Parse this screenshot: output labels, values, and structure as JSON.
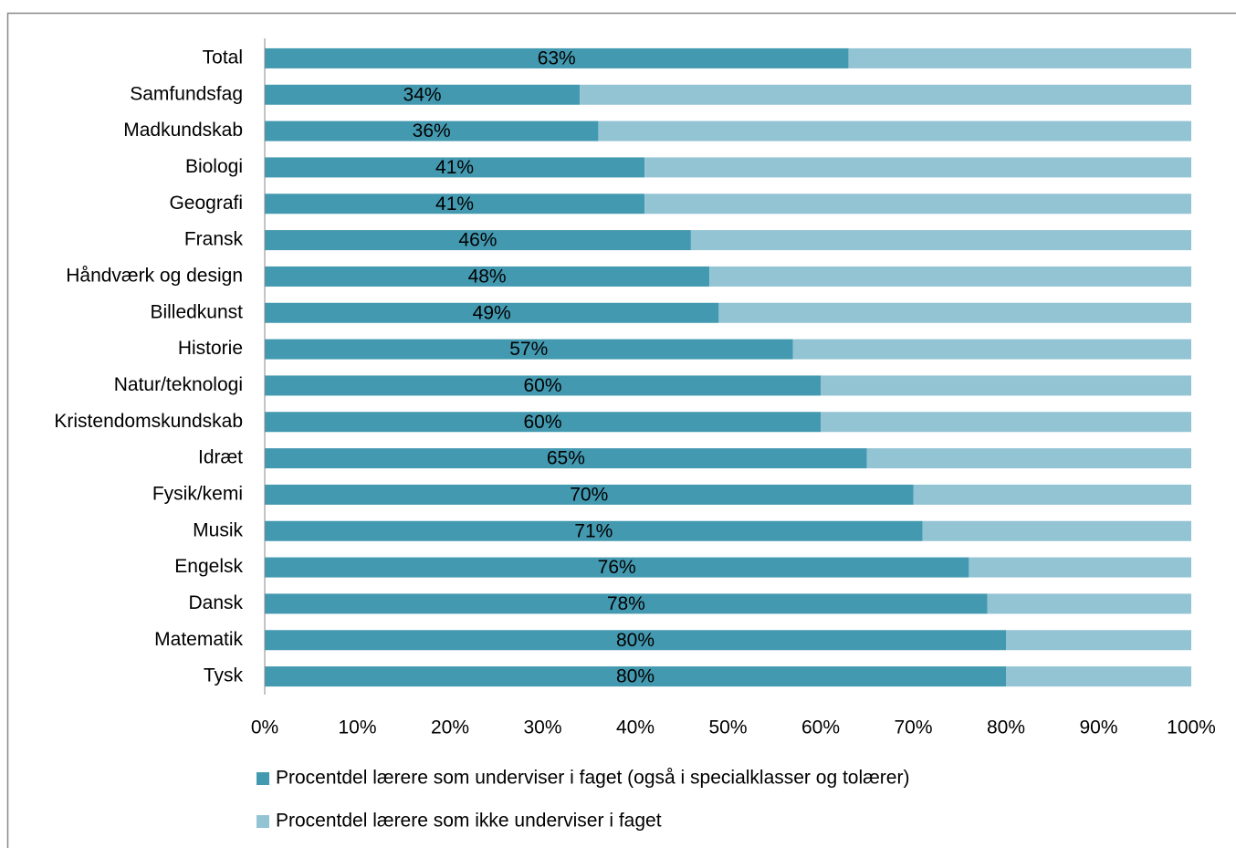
{
  "chart_data": {
    "type": "stacked_bar_horizontal",
    "categories": [
      "Total",
      "Samfundsfag",
      "Madkundskab",
      "Biologi",
      "Geografi",
      "Fransk",
      "Håndværk og design",
      "Billedkunst",
      "Historie",
      "Natur/teknologi",
      "Kristendomskundskab",
      "Idræt",
      "Fysik/kemi",
      "Musik",
      "Engelsk",
      "Dansk",
      "Matematik",
      "Tysk"
    ],
    "series": [
      {
        "name": "Procentdel lærere som underviser i faget (også i specialklasser og tolærer)",
        "color": "#4399b0",
        "values": [
          63,
          34,
          36,
          41,
          41,
          46,
          48,
          49,
          57,
          60,
          60,
          65,
          70,
          71,
          76,
          78,
          80,
          80
        ],
        "value_labels": [
          "63%",
          "34%",
          "36%",
          "41%",
          "41%",
          "46%",
          "48%",
          "49%",
          "57%",
          "60%",
          "60%",
          "65%",
          "70%",
          "71%",
          "76%",
          "78%",
          "80%",
          "80%"
        ]
      },
      {
        "name": "Procentdel lærere som ikke underviser i faget",
        "color": "#93c4d4",
        "values": [
          37,
          66,
          64,
          59,
          59,
          54,
          52,
          51,
          43,
          40,
          40,
          35,
          30,
          29,
          24,
          22,
          20,
          20
        ]
      }
    ],
    "xlim": [
      0,
      100
    ],
    "xticks": [
      {
        "value": 0,
        "label": "0%"
      },
      {
        "value": 10,
        "label": "10%"
      },
      {
        "value": 20,
        "label": "20%"
      },
      {
        "value": 30,
        "label": "30%"
      },
      {
        "value": 40,
        "label": "40%"
      },
      {
        "value": 50,
        "label": "50%"
      },
      {
        "value": 60,
        "label": "60%"
      },
      {
        "value": 70,
        "label": "70%"
      },
      {
        "value": 80,
        "label": "80%"
      },
      {
        "value": 90,
        "label": "90%"
      },
      {
        "value": 100,
        "label": "100%"
      }
    ],
    "legend": "bottom"
  }
}
